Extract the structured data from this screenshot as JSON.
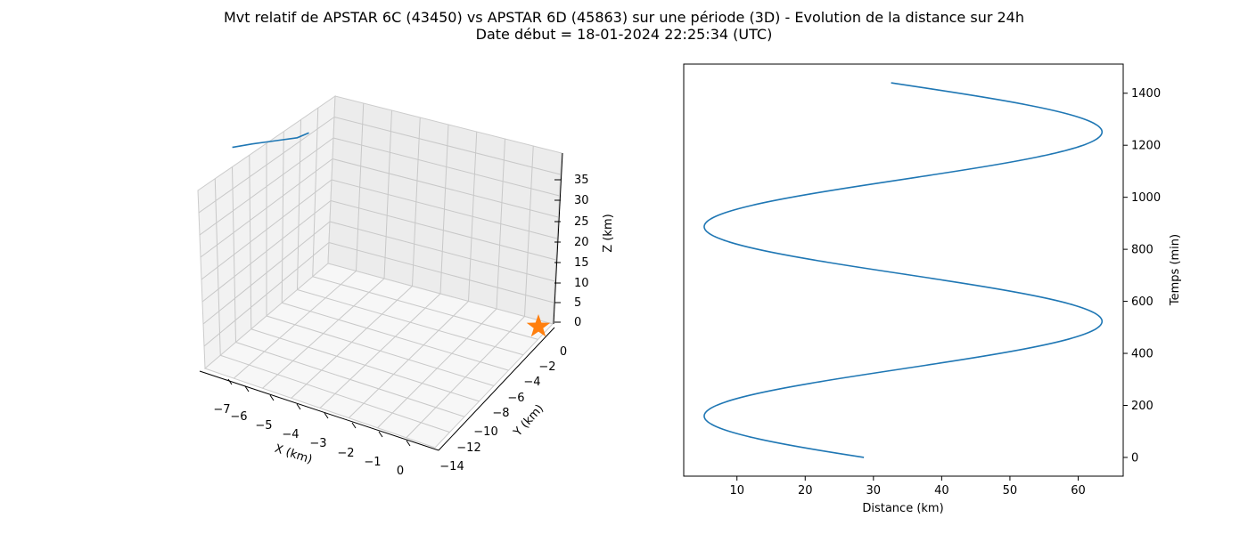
{
  "title_line1": "Mvt relatif de APSTAR 6C (43450) vs APSTAR 6D (45863) sur une période (3D) - Evolution de la distance sur 24h",
  "title_line2": "Date début = 18-01-2024 22:25:34 (UTC)",
  "chart_data": [
    {
      "type": "line3d",
      "xlabel": "X (km)",
      "ylabel": "Y (km)",
      "zlabel": "Z (km)",
      "x_ticks": [
        "−7",
        "−6",
        "−5",
        "−4",
        "−3",
        "−2",
        "−1",
        "0"
      ],
      "y_ticks": [
        "0",
        "−2",
        "−4",
        "−6",
        "−8",
        "−10",
        "−12",
        "−14"
      ],
      "z_ticks": [
        "0",
        "5",
        "10",
        "15",
        "20",
        "25",
        "30",
        "35"
      ],
      "series": [
        {
          "color": "#1f77b4",
          "x": [
            -7.6,
            -7.3,
            -6.9,
            -6.6,
            -6.4
          ],
          "y": [
            -9.0,
            -7.6,
            -6.1,
            -4.6,
            -3.9
          ],
          "z": [
            27.0,
            29.0,
            31.0,
            33.0,
            34.5
          ]
        }
      ],
      "marker": {
        "shape": "star",
        "color": "#ff7f0e",
        "x": 0,
        "y": 0,
        "z": 0
      }
    },
    {
      "type": "line",
      "xlabel": "Distance (km)",
      "ylabel": "Temps (min)",
      "xlim": [
        2.2,
        66.6
      ],
      "ylim": [
        -72,
        1512
      ],
      "x_ticks": [
        10,
        20,
        30,
        40,
        50,
        60
      ],
      "y_ticks": [
        0,
        200,
        400,
        600,
        800,
        1000,
        1200,
        1400
      ],
      "grid": false,
      "series": [
        {
          "color": "#1f77b4"
        }
      ],
      "curve_model": {
        "mean_km": 34.35,
        "amplitude_km": 29.15,
        "period_min": 728,
        "peak_time_min": 523,
        "time_range_min": [
          0,
          1440
        ]
      }
    }
  ]
}
